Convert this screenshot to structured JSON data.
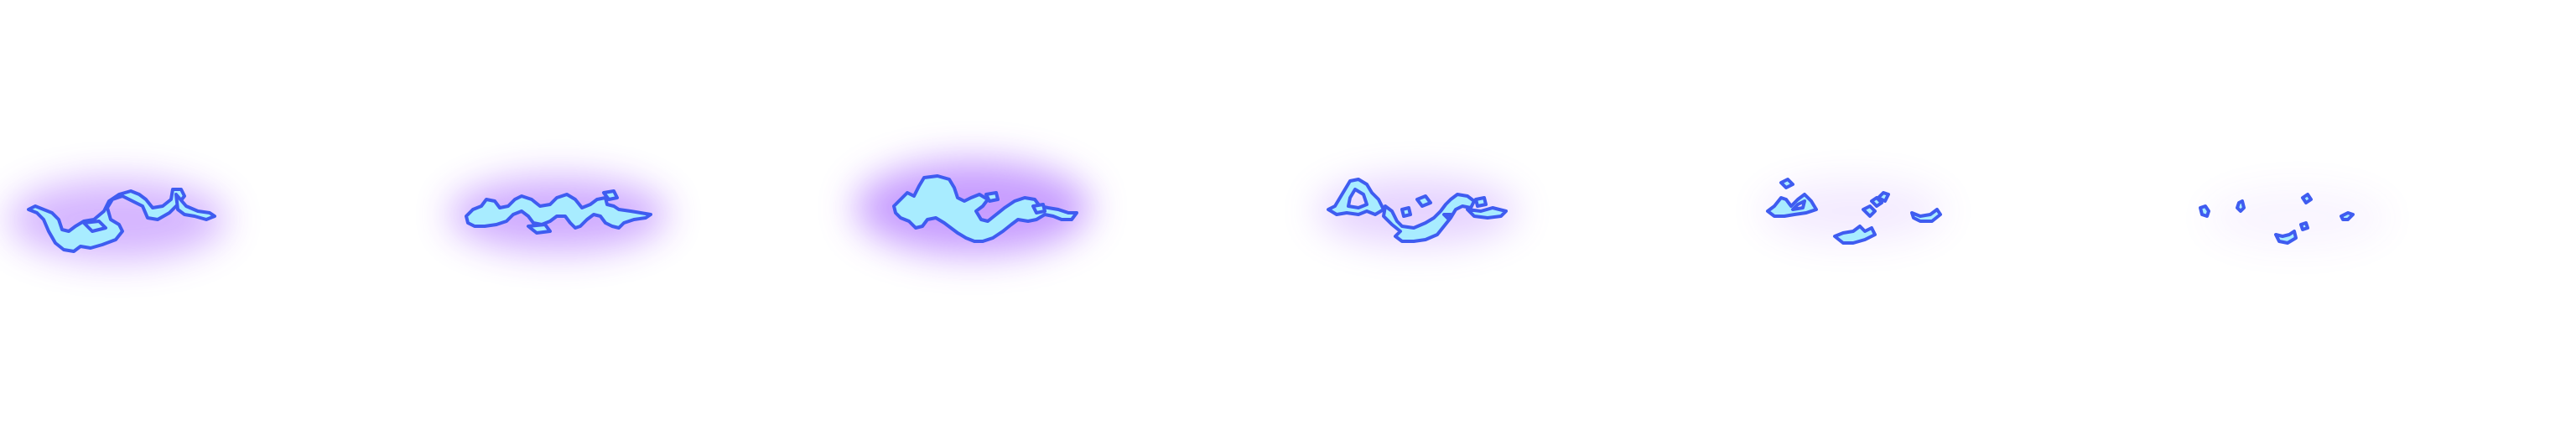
{
  "sprite_sheet": {
    "columns": 6,
    "rows": 1,
    "frame_count": 6,
    "palette": {
      "fill": "#a8ecff",
      "stroke": "#3f5cf0",
      "glow": "#9a4dff",
      "background": "#ffffff"
    },
    "frames": [
      {
        "name": "frame-1",
        "glow_intensity": 0.75
      },
      {
        "name": "frame-2",
        "glow_intensity": 0.85
      },
      {
        "name": "frame-3",
        "glow_intensity": 1.0
      },
      {
        "name": "frame-4",
        "glow_intensity": 0.45
      },
      {
        "name": "frame-5",
        "glow_intensity": 0.2
      },
      {
        "name": "frame-6",
        "glow_intensity": 0.1
      }
    ]
  }
}
